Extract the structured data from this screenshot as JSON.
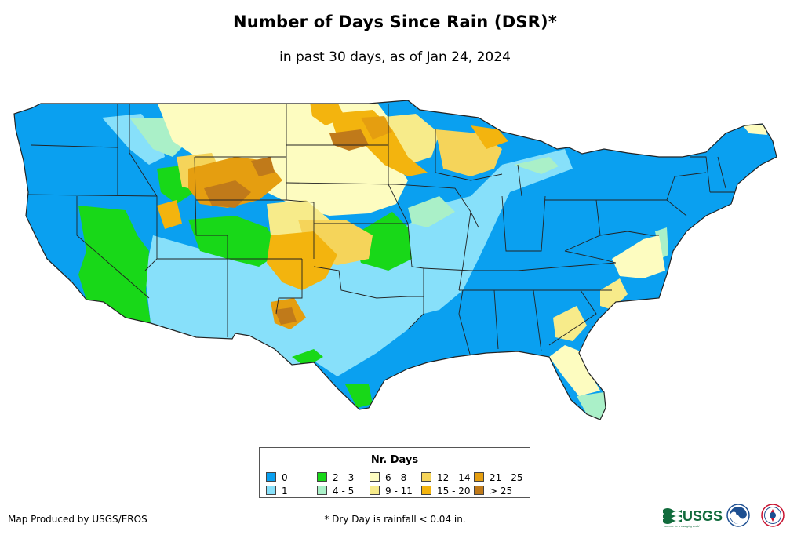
{
  "title": "Number of Days Since Rain (DSR)*",
  "subtitle": "in past 30 days, as of Jan 24, 2024",
  "legend": {
    "title": "Nr. Days",
    "items": [
      {
        "label": "0",
        "color": "#0aa0f0"
      },
      {
        "label": "1",
        "color": "#87e0fa"
      },
      {
        "label": "2 - 3",
        "color": "#18d818"
      },
      {
        "label": "4 - 5",
        "color": "#aaf0c8"
      },
      {
        "label": "6 - 8",
        "color": "#fdfcc0"
      },
      {
        "label": "9 - 11",
        "color": "#f7eb8a"
      },
      {
        "label": "12 - 14",
        "color": "#f5d45a"
      },
      {
        "label": "15 - 20",
        "color": "#f3b40e"
      },
      {
        "label": "21 - 25",
        "color": "#e59e10"
      },
      {
        "label": "> 25",
        "color": "#c07a1a"
      }
    ]
  },
  "credit": "Map Produced by USGS/EROS",
  "footnote": "* Dry Day is rainfall < 0.04 in.",
  "logos": {
    "usgs": "USGS",
    "usgs_tagline": "science for a changing world"
  }
}
